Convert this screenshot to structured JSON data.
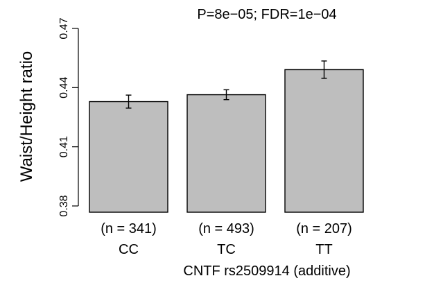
{
  "chart_data": {
    "type": "bar",
    "title": "P=8e−05; FDR=1e−04",
    "xlabel": "CNTF rs2509914 (additive)",
    "ylabel": "Waist/Height ratio",
    "categories": [
      "CC",
      "TC",
      "TT"
    ],
    "n_labels": [
      "(n = 341)",
      "(n = 493)",
      "(n = 207)"
    ],
    "values": [
      0.4329,
      0.4364,
      0.4491
    ],
    "error_low": [
      0.4296,
      0.4339,
      0.4447
    ],
    "error_high": [
      0.4362,
      0.4389,
      0.4535
    ],
    "ylim": [
      0.38,
      0.47
    ],
    "yticks": [
      0.38,
      0.41,
      0.44,
      0.47
    ],
    "ytick_labels": [
      "0.38",
      "0.41",
      "0.44",
      "0.47"
    ],
    "bar_color": "#bebebe",
    "edge_color": "#000000",
    "grid": false,
    "legend": "none"
  }
}
